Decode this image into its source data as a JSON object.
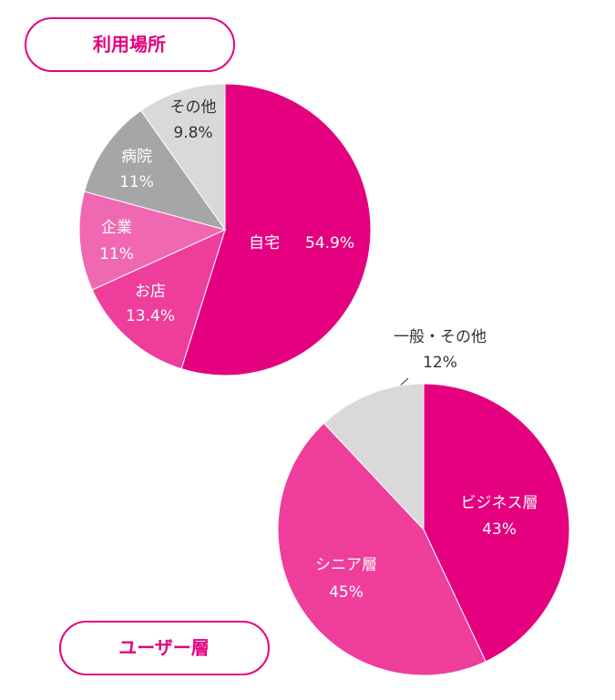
{
  "chart_data": [
    {
      "type": "pie",
      "title": "利用場所",
      "categories": [
        "自宅",
        "お店",
        "企業",
        "病院",
        "その他"
      ],
      "values": [
        54.9,
        13.4,
        11,
        11,
        9.8
      ],
      "value_labels": [
        "54.9%",
        "13.4%",
        "11%",
        "11%",
        "9.8%"
      ],
      "colors": [
        "#e4007f",
        "#ef3d9c",
        "#f068b1",
        "#a6a6a6",
        "#d9d9d9"
      ]
    },
    {
      "type": "pie",
      "title": "ユーザー層",
      "categories": [
        "ビジネス層",
        "シニア層",
        "一般・その他"
      ],
      "values": [
        43,
        45,
        12
      ],
      "value_labels": [
        "43%",
        "45%",
        "12%"
      ],
      "colors": [
        "#e4007f",
        "#ef3d9c",
        "#d9d9d9"
      ]
    }
  ]
}
